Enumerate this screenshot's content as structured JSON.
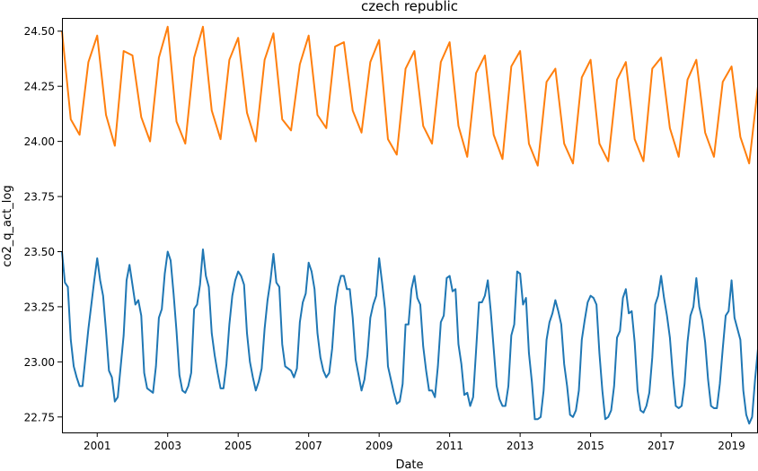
{
  "chart_data": {
    "type": "line",
    "title": "czech republic",
    "xlabel": "Date",
    "ylabel": "co2_q_act_log",
    "xlim": [
      2000.0,
      2019.75
    ],
    "ylim": [
      22.68,
      24.56
    ],
    "xticks": [
      2001,
      2003,
      2005,
      2007,
      2009,
      2011,
      2013,
      2015,
      2017,
      2019
    ],
    "yticks": [
      22.75,
      23.0,
      23.25,
      23.5,
      23.75,
      24.0,
      24.25,
      24.5
    ],
    "ytick_labels": [
      "22.75",
      "23.00",
      "23.25",
      "23.50",
      "23.75",
      "24.00",
      "24.25",
      "24.50"
    ],
    "grid": false,
    "series": [
      {
        "color": "#ff7f0e",
        "frequency": "quarterly",
        "x": [
          2000.0,
          2000.25,
          2000.5,
          2000.75,
          2001.0,
          2001.25,
          2001.5,
          2001.75,
          2002.0,
          2002.25,
          2002.5,
          2002.75,
          2003.0,
          2003.25,
          2003.5,
          2003.75,
          2004.0,
          2004.25,
          2004.5,
          2004.75,
          2005.0,
          2005.25,
          2005.5,
          2005.75,
          2006.0,
          2006.25,
          2006.5,
          2006.75,
          2007.0,
          2007.25,
          2007.5,
          2007.75,
          2008.0,
          2008.25,
          2008.5,
          2008.75,
          2009.0,
          2009.25,
          2009.5,
          2009.75,
          2010.0,
          2010.25,
          2010.5,
          2010.75,
          2011.0,
          2011.25,
          2011.5,
          2011.75,
          2012.0,
          2012.25,
          2012.5,
          2012.75,
          2013.0,
          2013.25,
          2013.5,
          2013.75,
          2014.0,
          2014.25,
          2014.5,
          2014.75,
          2015.0,
          2015.25,
          2015.5,
          2015.75,
          2016.0,
          2016.25,
          2016.5,
          2016.75,
          2017.0,
          2017.25,
          2017.5,
          2017.75,
          2018.0,
          2018.25,
          2018.5,
          2018.75,
          2019.0,
          2019.25,
          2019.5,
          2019.75
        ],
        "y": [
          24.5,
          24.1,
          24.03,
          24.36,
          24.48,
          24.12,
          23.98,
          24.41,
          24.39,
          24.11,
          24.0,
          24.38,
          24.52,
          24.09,
          23.99,
          24.38,
          24.52,
          24.14,
          24.01,
          24.37,
          24.47,
          24.13,
          24.0,
          24.37,
          24.49,
          24.1,
          24.05,
          24.35,
          24.48,
          24.12,
          24.06,
          24.43,
          24.45,
          24.14,
          24.04,
          24.36,
          24.46,
          24.01,
          23.94,
          24.33,
          24.41,
          24.07,
          23.99,
          24.36,
          24.45,
          24.07,
          23.93,
          24.31,
          24.39,
          24.03,
          23.92,
          24.34,
          24.41,
          23.99,
          23.89,
          24.27,
          24.33,
          23.99,
          23.9,
          24.29,
          24.37,
          23.99,
          23.91,
          24.28,
          24.36,
          24.01,
          23.91,
          24.33,
          24.38,
          24.06,
          23.93,
          24.28,
          24.37,
          24.04,
          23.93,
          24.27,
          24.34,
          24.02,
          23.9,
          24.25
        ]
      },
      {
        "color": "#1f77b4",
        "frequency": "monthly",
        "start": 2000.0,
        "step": 0.08333333,
        "y": [
          23.5,
          23.36,
          23.34,
          23.1,
          22.98,
          22.93,
          22.89,
          22.89,
          23.02,
          23.15,
          23.26,
          23.37,
          23.47,
          23.37,
          23.3,
          23.14,
          22.96,
          22.93,
          22.82,
          22.84,
          22.98,
          23.12,
          23.37,
          23.44,
          23.35,
          23.26,
          23.28,
          23.21,
          22.95,
          22.88,
          22.87,
          22.86,
          22.98,
          23.2,
          23.24,
          23.4,
          23.5,
          23.46,
          23.31,
          23.14,
          22.94,
          22.87,
          22.86,
          22.89,
          22.95,
          23.24,
          23.26,
          23.35,
          23.51,
          23.39,
          23.34,
          23.13,
          23.03,
          22.95,
          22.88,
          22.88,
          22.99,
          23.17,
          23.3,
          23.37,
          23.41,
          23.39,
          23.35,
          23.13,
          23.0,
          22.93,
          22.87,
          22.91,
          22.97,
          23.15,
          23.28,
          23.37,
          23.49,
          23.36,
          23.34,
          23.08,
          22.98,
          22.97,
          22.96,
          22.93,
          22.97,
          23.18,
          23.27,
          23.31,
          23.45,
          23.41,
          23.33,
          23.13,
          23.02,
          22.96,
          22.93,
          22.95,
          23.06,
          23.25,
          23.34,
          23.39,
          23.39,
          23.33,
          23.33,
          23.2,
          23.01,
          22.94,
          22.87,
          22.92,
          23.03,
          23.2,
          23.26,
          23.3,
          23.47,
          23.36,
          23.24,
          22.98,
          22.92,
          22.86,
          22.81,
          22.82,
          22.9,
          23.17,
          23.17,
          23.33,
          23.39,
          23.29,
          23.26,
          23.07,
          22.96,
          22.87,
          22.87,
          22.84,
          22.98,
          23.18,
          23.21,
          23.38,
          23.39,
          23.32,
          23.33,
          23.08,
          22.99,
          22.85,
          22.86,
          22.8,
          22.84,
          23.05,
          23.27,
          23.27,
          23.3,
          23.37,
          23.23,
          23.06,
          22.89,
          22.83,
          22.8,
          22.8,
          22.89,
          23.12,
          23.17,
          23.41,
          23.4,
          23.26,
          23.29,
          23.04,
          22.91,
          22.74,
          22.74,
          22.75,
          22.87,
          23.1,
          23.18,
          23.22,
          23.28,
          23.23,
          23.17,
          22.99,
          22.89,
          22.76,
          22.75,
          22.78,
          22.87,
          23.1,
          23.19,
          23.27,
          23.3,
          23.29,
          23.26,
          23.04,
          22.87,
          22.74,
          22.75,
          22.78,
          22.89,
          23.11,
          23.14,
          23.29,
          23.33,
          23.22,
          23.23,
          23.09,
          22.87,
          22.78,
          22.77,
          22.8,
          22.86,
          23.02,
          23.26,
          23.3,
          23.39,
          23.29,
          23.21,
          23.11,
          22.94,
          22.8,
          22.79,
          22.8,
          22.9,
          23.09,
          23.21,
          23.25,
          23.38,
          23.25,
          23.19,
          23.09,
          22.92,
          22.8,
          22.79,
          22.79,
          22.9,
          23.06,
          23.21,
          23.23,
          23.37,
          23.2,
          23.15,
          23.1,
          22.87,
          22.76,
          22.72,
          22.75,
          22.92,
          23.06
        ]
      }
    ]
  }
}
